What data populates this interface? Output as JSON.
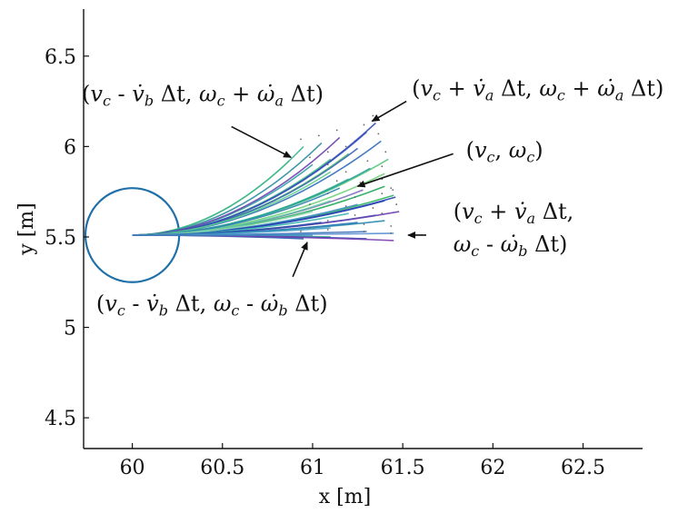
{
  "chart_data": {
    "type": "line",
    "title": "",
    "xlabel": "x [m]",
    "ylabel": "y [m]",
    "xlim": [
      59.73,
      62.83
    ],
    "ylim": [
      4.33,
      6.76
    ],
    "xticks": [
      60,
      60.5,
      61,
      61.5,
      62,
      62.5
    ],
    "yticks": [
      4.5,
      5,
      5.5,
      6,
      6.5
    ],
    "xtick_labels": [
      "60",
      "60.5",
      "61",
      "61.5",
      "62",
      "62.5"
    ],
    "ytick_labels": [
      "4.5",
      "5",
      "5.5",
      "6",
      "6.5"
    ],
    "grid": false,
    "legend": "none",
    "robot": {
      "center": [
        60.0,
        5.51
      ],
      "radius": 0.26,
      "color": "#1f6fa8"
    },
    "trajectory_origin": [
      60.0,
      5.51
    ],
    "trajectories": [
      {
        "end": [
          60.87,
          5.92
        ],
        "color": "#6fd08c"
      },
      {
        "end": [
          60.95,
          6.0
        ],
        "color": "#3ab58a"
      },
      {
        "end": [
          61.0,
          5.9
        ],
        "color": "#2f9ea6"
      },
      {
        "end": [
          61.05,
          6.02
        ],
        "color": "#2e8ca0"
      },
      {
        "end": [
          61.1,
          5.93
        ],
        "color": "#47c78a"
      },
      {
        "end": [
          61.15,
          6.05
        ],
        "color": "#6a3fb0"
      },
      {
        "end": [
          61.2,
          5.96
        ],
        "color": "#4bbf6b"
      },
      {
        "end": [
          61.25,
          5.99
        ],
        "color": "#3a64b5"
      },
      {
        "end": [
          61.3,
          6.08
        ],
        "color": "#2c55b8"
      },
      {
        "end": [
          61.35,
          6.13
        ],
        "color": "#3b4fb8"
      },
      {
        "end": [
          61.38,
          6.03
        ],
        "color": "#2f6db8"
      },
      {
        "end": [
          61.42,
          5.93
        ],
        "color": "#54c87a"
      },
      {
        "end": [
          61.1,
          5.86
        ],
        "color": "#5bd08a"
      },
      {
        "end": [
          61.2,
          5.82
        ],
        "color": "#37b47c"
      },
      {
        "end": [
          61.32,
          5.88
        ],
        "color": "#2aa2a0"
      },
      {
        "end": [
          61.4,
          5.85
        ],
        "color": "#6fd07a"
      },
      {
        "end": [
          61.15,
          5.77
        ],
        "color": "#2f7fb0"
      },
      {
        "end": [
          61.28,
          5.76
        ],
        "color": "#7a6fb8"
      },
      {
        "end": [
          61.4,
          5.78
        ],
        "color": "#22a85a"
      },
      {
        "end": [
          61.45,
          5.73
        ],
        "color": "#2bb45c"
      },
      {
        "end": [
          61.1,
          5.7
        ],
        "color": "#5fc8a0"
      },
      {
        "end": [
          61.25,
          5.68
        ],
        "color": "#3f8fc0"
      },
      {
        "end": [
          61.4,
          5.7
        ],
        "color": "#1f4fb0"
      },
      {
        "end": [
          61.46,
          5.72
        ],
        "color": "#2a3fb8"
      },
      {
        "end": [
          61.0,
          5.64
        ],
        "color": "#8fd8b0"
      },
      {
        "end": [
          61.2,
          5.63
        ],
        "color": "#3ab5b0"
      },
      {
        "end": [
          61.35,
          5.62
        ],
        "color": "#2f5fb5"
      },
      {
        "end": [
          61.48,
          5.64
        ],
        "color": "#6a3fb0"
      },
      {
        "end": [
          61.05,
          5.58
        ],
        "color": "#2a4fa8"
      },
      {
        "end": [
          61.25,
          5.58
        ],
        "color": "#1f6fb0"
      },
      {
        "end": [
          61.4,
          5.59
        ],
        "color": "#2a8ab0"
      },
      {
        "end": [
          61.1,
          5.55
        ],
        "color": "#4aa0c8"
      },
      {
        "end": [
          61.3,
          5.53
        ],
        "color": "#3b6fb8"
      },
      {
        "end": [
          61.45,
          5.52
        ],
        "color": "#5a8fd0"
      },
      {
        "end": [
          60.95,
          5.49
        ],
        "color": "#1f5fb0"
      },
      {
        "end": [
          61.1,
          5.5
        ],
        "color": "#3ab58a"
      },
      {
        "end": [
          61.3,
          5.49
        ],
        "color": "#2f4fb8"
      },
      {
        "end": [
          61.45,
          5.48
        ],
        "color": "#7a3fb0"
      },
      {
        "end": [
          61.0,
          5.51
        ],
        "color": "#3a8fc0"
      }
    ],
    "annotations": [
      {
        "text": "(v_c - v̇_b Δt, ω_c + ω̇_a Δt)",
        "pos": [
          59.72,
          6.25
        ],
        "arrow_from": [
          60.55,
          6.11
        ],
        "arrow_to": [
          60.88,
          5.94
        ]
      },
      {
        "text": "(v_c + v̇_a Δt, ω_c + ω̇_a Δt)",
        "pos": [
          61.55,
          6.28
        ],
        "arrow_from": [
          61.52,
          6.25
        ],
        "arrow_to": [
          61.33,
          6.14
        ]
      },
      {
        "text": "(v_c, ω_c)",
        "pos": [
          61.85,
          5.94
        ],
        "arrow_from": [
          61.78,
          5.96
        ],
        "arrow_to": [
          61.25,
          5.78
        ]
      },
      {
        "text": "(v_c + v̇_a Δt,",
        "pos": [
          61.78,
          5.6
        ],
        "arrow_from": [
          61.63,
          5.51
        ],
        "arrow_to": [
          61.53,
          5.51
        ]
      },
      {
        "text": "ω_c - ω̇_b Δt)",
        "pos": [
          61.78,
          5.42
        ],
        "arrow_from": null,
        "arrow_to": null
      },
      {
        "text": "(v_c - v̇_b Δt, ω_c - ω̇_b Δt)",
        "pos": [
          59.8,
          5.09
        ],
        "arrow_from": [
          60.89,
          5.28
        ],
        "arrow_to": [
          60.97,
          5.47
        ]
      }
    ]
  }
}
